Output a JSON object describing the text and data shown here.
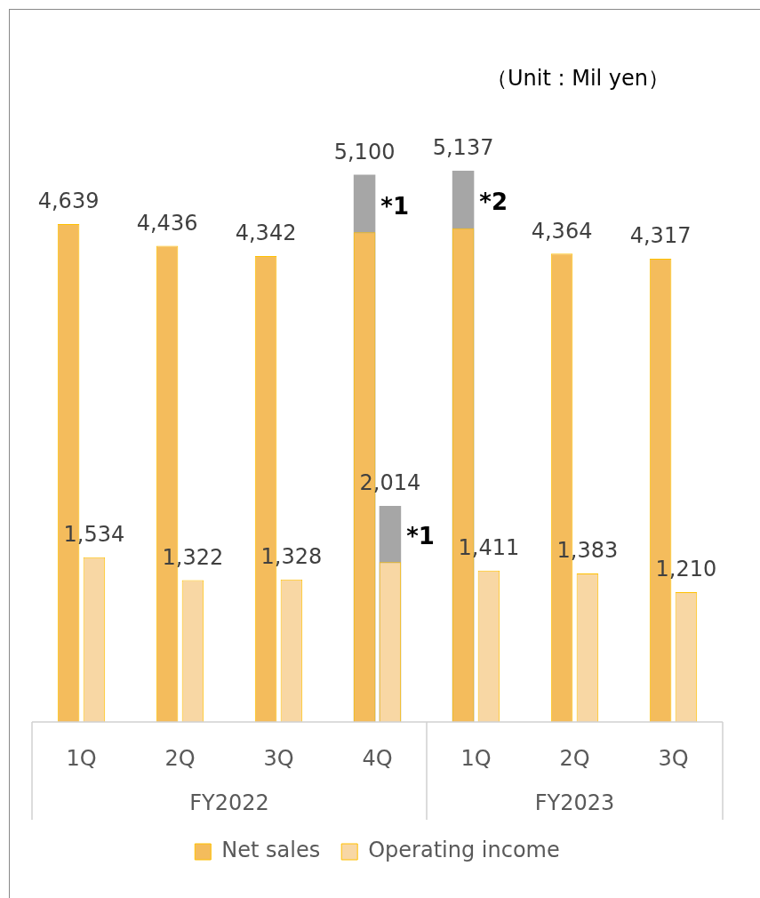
{
  "chart_data": {
    "type": "bar",
    "subtitle": "（Unit : Mil yen）",
    "categories": [
      "1Q",
      "2Q",
      "3Q",
      "4Q",
      "1Q",
      "2Q",
      "3Q"
    ],
    "series": [
      {
        "name": "Net sales",
        "color": "#f4bc5c",
        "values": [
          4639,
          4436,
          4342,
          4563,
          4600,
          4364,
          4317
        ],
        "value_labels": [
          "4,639",
          "4,436",
          "4,342",
          null,
          null,
          "4,364",
          "4,317"
        ]
      },
      {
        "color": "#a6a6a6",
        "values": [
          null,
          null,
          null,
          5100,
          5137,
          null,
          null
        ],
        "value_labels": [
          null,
          null,
          null,
          "5,100",
          "5,137",
          null,
          null
        ]
      },
      {
        "name": "Operating income",
        "color": "#f8d7a4",
        "values": [
          1534,
          1322,
          1328,
          1490,
          1411,
          1383,
          1210
        ],
        "value_labels": [
          "1,534",
          "1,322",
          "1,328",
          null,
          "1,411",
          "1,383",
          "1,210"
        ]
      },
      {
        "color": "#a6a6a6",
        "values": [
          null,
          null,
          null,
          2014,
          null,
          null,
          null
        ],
        "value_labels": [
          null,
          null,
          null,
          "2,014",
          null,
          null,
          null
        ]
      }
    ],
    "annotations": [
      "*1",
      "*2",
      "*1",
      "FY2022",
      "FY2023"
    ],
    "legend": "bottom",
    "grid": false
  }
}
